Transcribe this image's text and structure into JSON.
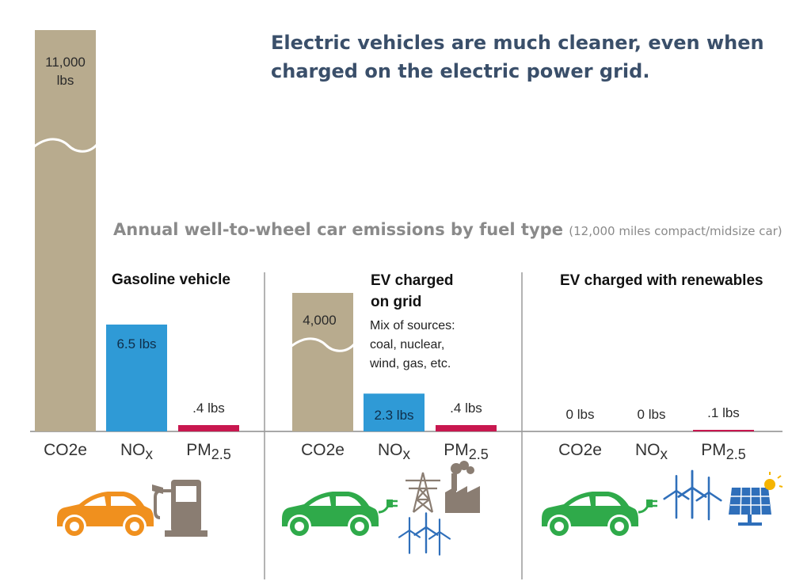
{
  "headline": "Electric vehicles are much cleaner, even when charged on the electric power grid.",
  "subtitle": {
    "main": "Annual well-to-wheel car emissions by fuel type",
    "note": "(12,000 miles compact/midsize car)"
  },
  "colors": {
    "co2": "#b8ab8e",
    "nox": "#2f9ad6",
    "pm": "#c8174f",
    "gas_car": "#f0901e",
    "ev_car": "#2faa4a",
    "grey_icon": "#8a7d72",
    "blue_icon": "#2f6fba",
    "headline": "#3a4f6a"
  },
  "chart_data": {
    "type": "bar",
    "title": "Annual well-to-wheel car emissions by fuel type",
    "subtitle": "(12,000 miles compact/midsize car)",
    "categories": [
      "CO2e",
      "NOx",
      "PM2.5"
    ],
    "groups": [
      {
        "name": "Gasoline vehicle",
        "values": [
          11000,
          6.5,
          0.4
        ],
        "labels": [
          "11,000 lbs",
          "6.5 lbs",
          ".4 lbs"
        ],
        "icons": [
          "orange-car-icon",
          "gas-pump-icon"
        ]
      },
      {
        "name": "EV charged on grid",
        "note": "Mix of sources: coal, nuclear, wind, gas, etc.",
        "values": [
          4000,
          2.3,
          0.4
        ],
        "labels": [
          "4,000",
          "2.3 lbs",
          ".4 lbs"
        ],
        "icons": [
          "green-ev-car-icon",
          "power-tower-icon",
          "factory-icon",
          "wind-turbines-icon"
        ]
      },
      {
        "name": "EV charged with renewables",
        "values": [
          0,
          0,
          0.1
        ],
        "labels": [
          "0 lbs",
          "0 lbs",
          ".1 lbs"
        ],
        "icons": [
          "green-ev-car-icon",
          "wind-turbines-icon",
          "solar-panel-icon"
        ]
      }
    ],
    "axis_breaks": "CO2e bars are truncated with a wavy break",
    "grid": false,
    "legend": "none"
  }
}
